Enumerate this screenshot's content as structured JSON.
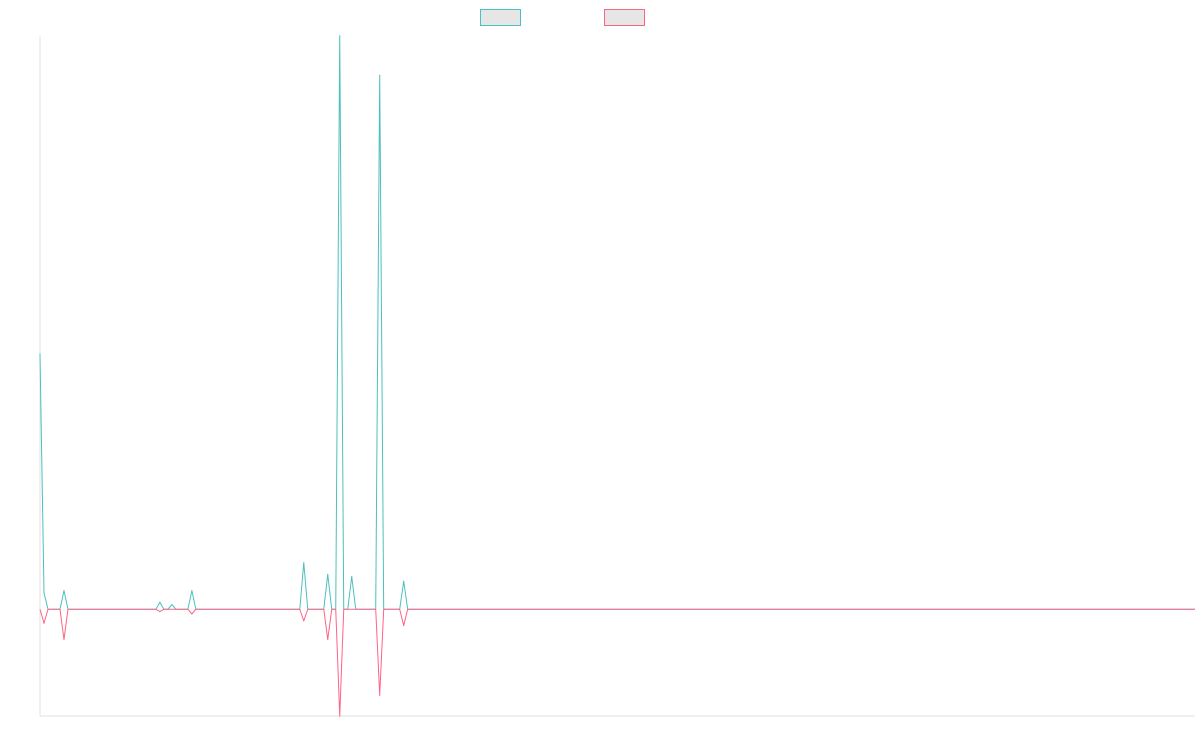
{
  "chart_data": {
    "type": "line",
    "title": "",
    "xlabel": "",
    "ylabel": "",
    "grid": false,
    "legend": "top-center",
    "x": [
      0,
      1,
      2,
      3,
      4,
      5,
      6,
      7,
      8,
      9,
      10,
      11,
      12,
      13,
      14,
      15,
      16,
      17,
      18,
      19,
      20,
      21,
      22,
      23,
      24,
      25,
      26,
      27,
      28,
      29,
      30,
      31,
      32,
      33,
      34,
      35,
      36,
      37,
      38,
      39,
      40,
      41,
      42,
      43,
      44,
      45,
      46,
      47,
      48,
      49,
      50,
      51,
      52,
      53,
      54,
      55,
      56,
      57,
      58,
      59,
      60,
      61,
      62,
      63,
      64,
      65,
      66,
      67,
      68,
      69,
      70,
      71,
      72,
      73,
      74,
      75,
      76,
      77,
      78,
      79,
      80,
      81,
      82,
      83,
      84,
      85,
      86,
      87,
      88,
      89,
      90,
      91,
      92,
      93,
      94,
      95,
      96,
      97,
      98,
      99,
      100,
      101,
      102,
      103,
      104,
      105,
      106,
      107,
      108,
      109,
      110,
      111,
      112,
      113,
      114,
      115,
      116,
      117,
      118,
      119,
      120,
      121,
      122,
      123,
      124,
      125,
      126,
      127,
      128,
      129,
      130,
      131,
      132,
      133,
      134,
      135,
      136,
      137,
      138,
      139,
      140,
      141,
      142,
      143,
      144,
      145,
      146,
      147,
      148,
      149,
      150,
      151,
      152,
      153,
      154,
      155,
      156,
      157,
      158,
      159,
      160,
      161,
      162,
      163,
      164,
      165,
      166,
      167,
      168,
      169,
      170,
      171,
      172,
      173,
      174,
      175,
      176,
      177,
      178,
      179,
      180,
      181,
      182,
      183,
      184,
      185,
      186,
      187,
      188,
      189,
      190,
      191,
      192,
      193,
      194,
      195,
      196,
      197,
      198,
      199,
      200,
      201,
      202,
      203,
      204,
      205,
      206,
      207,
      208,
      209,
      210,
      211,
      212,
      213,
      214,
      215,
      216,
      217,
      218,
      219,
      220,
      221,
      222,
      223,
      224,
      225,
      226,
      227,
      228,
      229,
      230,
      231,
      232,
      233,
      234,
      235,
      236,
      237,
      238,
      239,
      240,
      241,
      242,
      243,
      244,
      245,
      246,
      247,
      248,
      249,
      250,
      251,
      252,
      253,
      254,
      255,
      256,
      257,
      258,
      259,
      260,
      261,
      262,
      263,
      264,
      265,
      266,
      267,
      268,
      269,
      270,
      271,
      272,
      273,
      274,
      275,
      276,
      277,
      278,
      279,
      280,
      281,
      282,
      283,
      284,
      285,
      286,
      287,
      288,
      289
    ],
    "xlim": [
      0,
      289
    ],
    "ylim": [
      -46,
      247
    ],
    "series": [
      {
        "name": "",
        "color": "#4bc0c0",
        "points": [
          [
            0,
            110
          ],
          [
            1,
            7
          ],
          [
            6,
            8
          ],
          [
            30,
            3
          ],
          [
            33,
            2
          ],
          [
            38,
            8
          ],
          [
            66,
            20
          ],
          [
            72,
            15
          ],
          [
            75,
            247
          ],
          [
            78,
            14
          ],
          [
            85,
            230
          ],
          [
            91,
            12
          ]
        ]
      },
      {
        "name": "",
        "color": "#ff6384",
        "points": [
          [
            1,
            -6
          ],
          [
            6,
            -13
          ],
          [
            30,
            -1
          ],
          [
            38,
            -2
          ],
          [
            66,
            -5
          ],
          [
            72,
            -13
          ],
          [
            75,
            -46
          ],
          [
            85,
            -37
          ],
          [
            91,
            -7
          ]
        ]
      }
    ]
  }
}
